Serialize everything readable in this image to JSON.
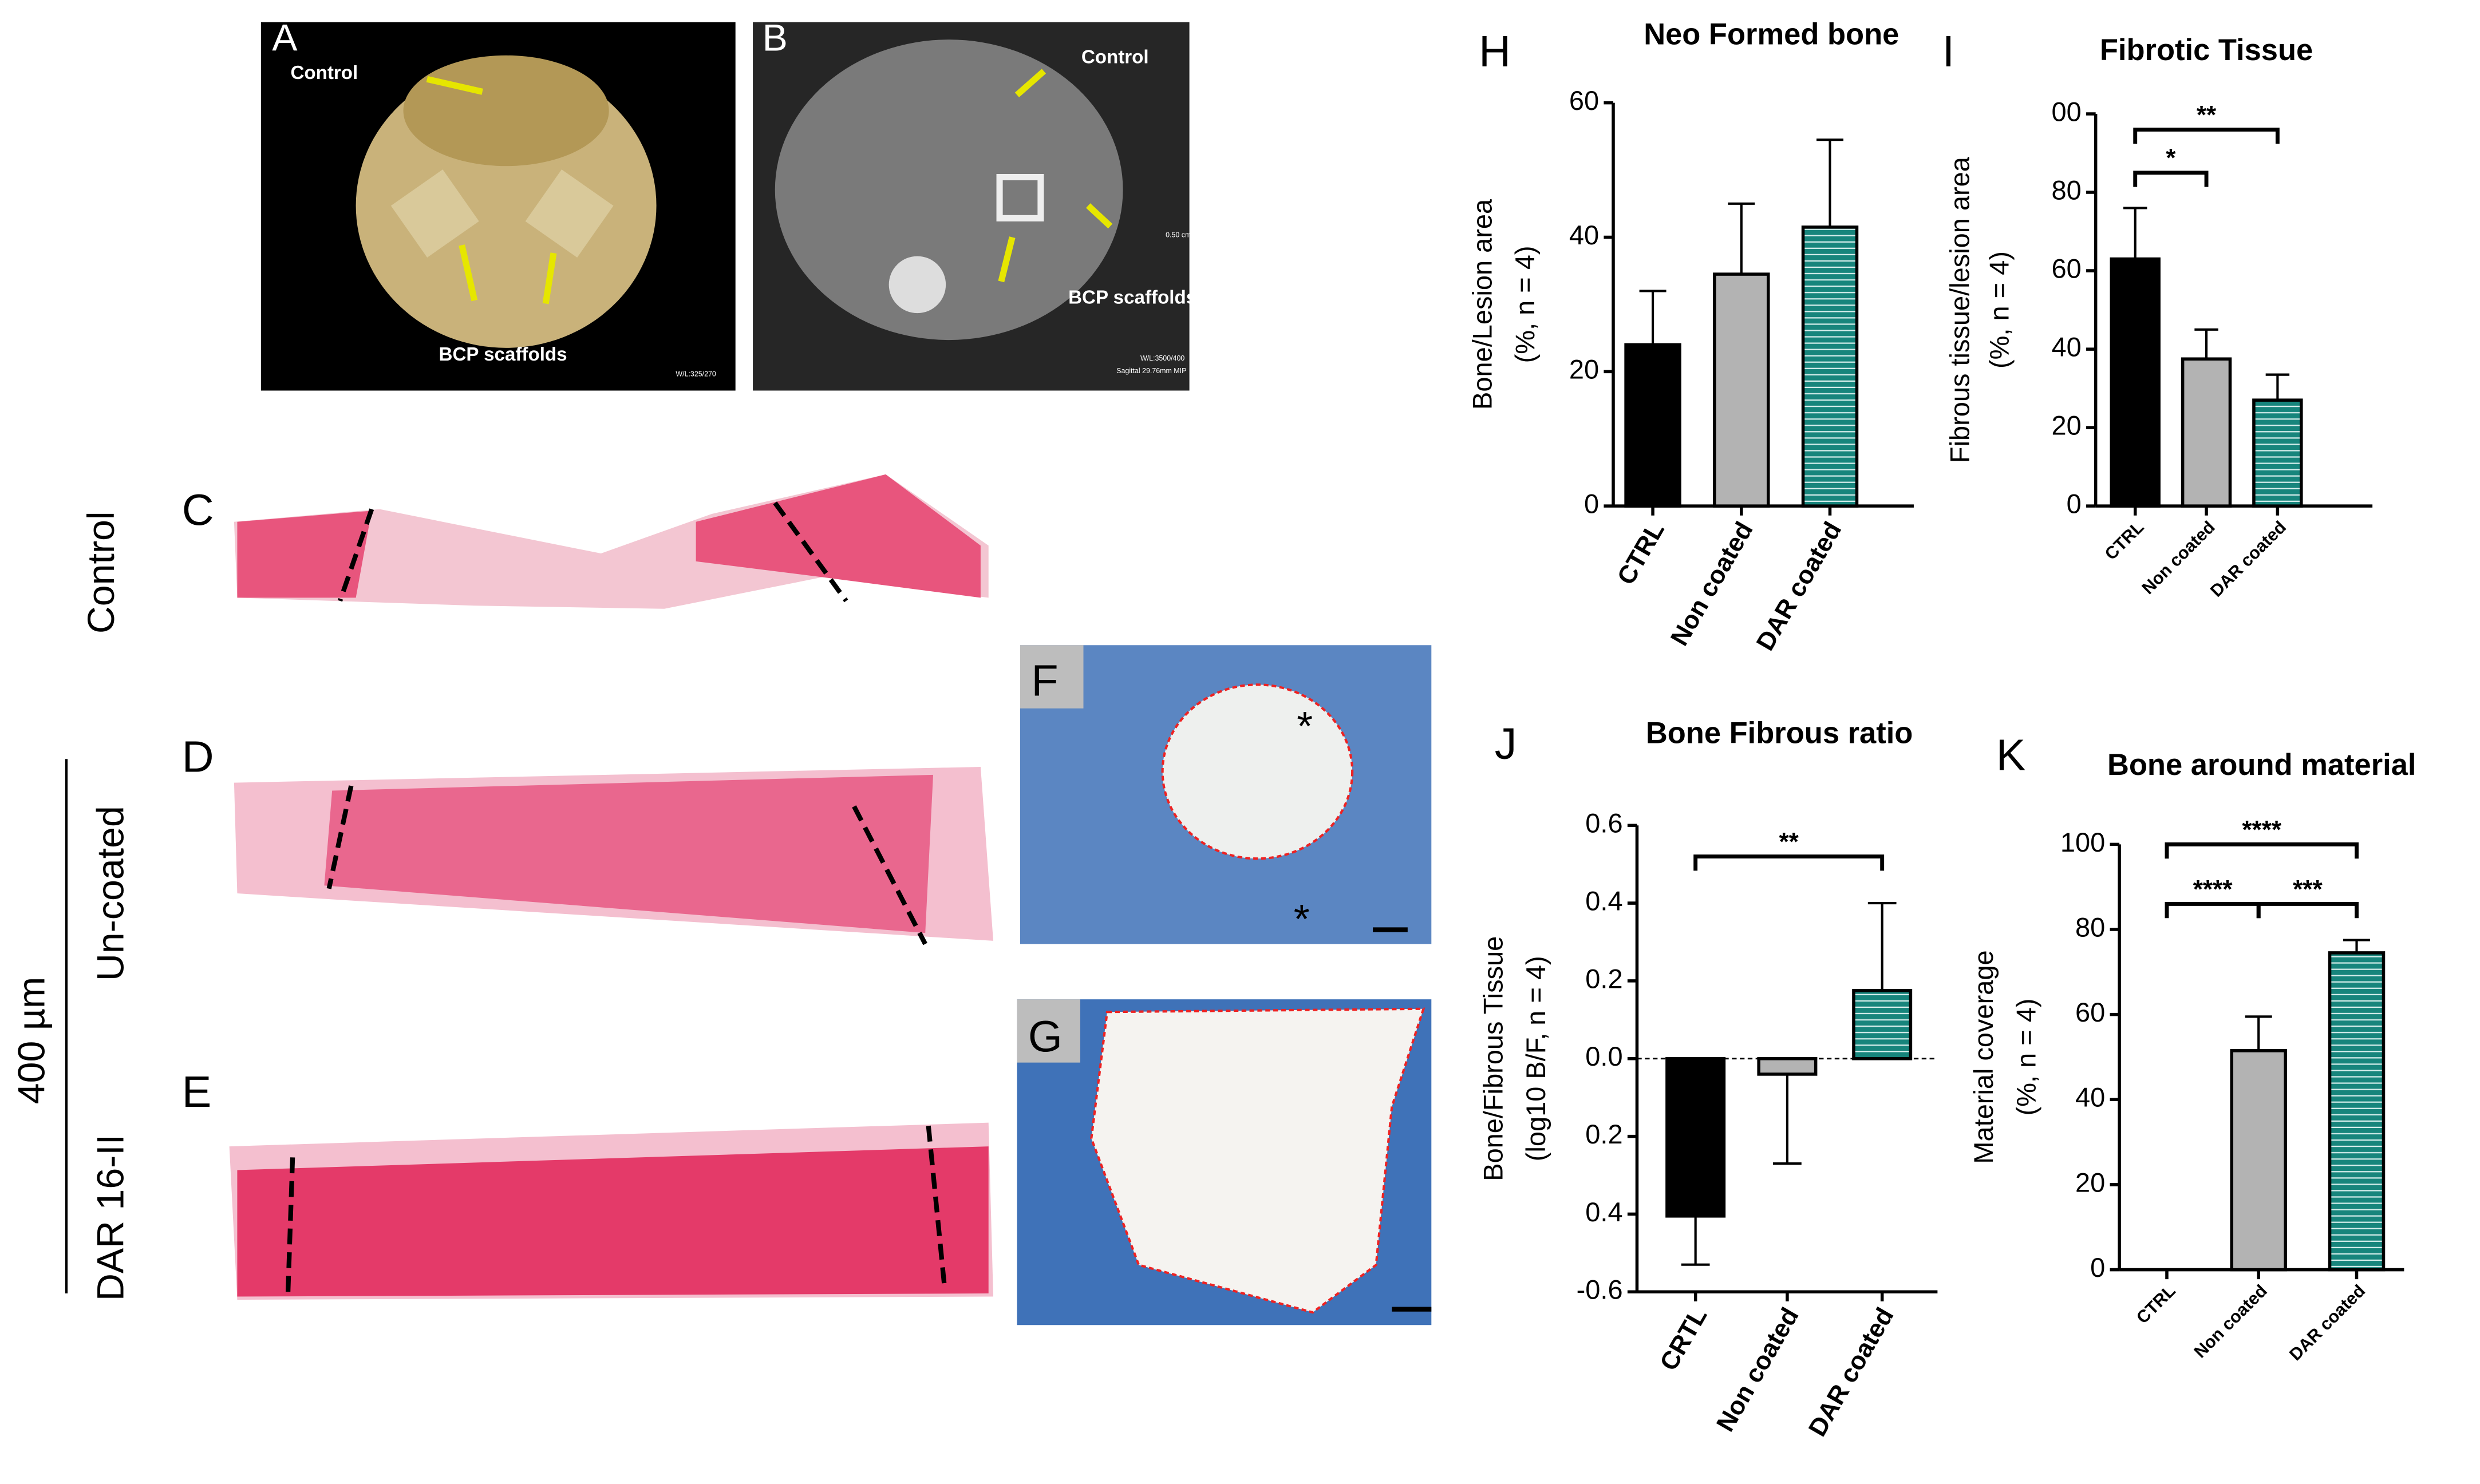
{
  "images": [
    {
      "label": "A",
      "annotations": [
        "Control",
        "BCP scaffolds",
        "W/L:325/270"
      ]
    },
    {
      "label": "B",
      "annotations": [
        "Control",
        "BCP scaffolds",
        "0.50 cm",
        "W/L:3500/400",
        "Sagittal 29.76mm MIP"
      ]
    },
    {
      "label": "C"
    },
    {
      "label": "D"
    },
    {
      "label": "E"
    },
    {
      "label": "F",
      "annotations": [
        "*",
        "*"
      ]
    },
    {
      "label": "G"
    }
  ],
  "row_labels": [
    "Control",
    "Un-coated",
    "DAR 16-II"
  ],
  "scale_bar": "400 µm",
  "chart_data": [
    {
      "type": "bar",
      "panel": "H",
      "title": "Neo Formed bone",
      "y_label": [
        "Bone/Lesion area",
        "(%, n = 4)"
      ],
      "categories": [
        "CTRL",
        "Non coated",
        "DAR coated"
      ],
      "values": [
        24,
        34.5,
        41.5
      ],
      "errors": [
        8,
        10.5,
        13
      ],
      "colors": [
        "#000000",
        "#b3b3b3",
        "#17857c"
      ],
      "hatched": [
        false,
        false,
        true
      ],
      "ylim": [
        0,
        60
      ],
      "yticks": [
        0,
        20,
        40,
        60
      ]
    },
    {
      "type": "bar",
      "panel": "I",
      "title": "Fibrotic Tissue",
      "y_label": [
        "Fibrous tissue/lesion area",
        "(%, n = 4)"
      ],
      "categories": [
        "CTRL",
        "Non coated",
        "DAR coated"
      ],
      "values": [
        63,
        37.5,
        27
      ],
      "errors": [
        13,
        7.5,
        6.5
      ],
      "colors": [
        "#000000",
        "#b3b3b3",
        "#17857c"
      ],
      "hatched": [
        false,
        false,
        true
      ],
      "ylim": [
        0,
        100
      ],
      "yticks": [
        0,
        20,
        40,
        60,
        80,
        {
          "value": 100,
          "label": "00"
        }
      ],
      "significance": [
        {
          "from": 0,
          "to": 1,
          "label": "*"
        },
        {
          "from": 0,
          "to": 2,
          "label": "**"
        }
      ]
    },
    {
      "type": "bar",
      "panel": "J",
      "title": "Bone Fibrous ratio",
      "y_label": [
        "Bone/Fibrous Tissue",
        "(log10 B/F, n = 4)"
      ],
      "categories": [
        "CRTL",
        "Non coated",
        "DAR coated"
      ],
      "values": [
        -0.405,
        -0.04,
        0.175
      ],
      "errors": [
        0.125,
        0.23,
        0.225
      ],
      "colors": [
        "#000000",
        "#b3b3b3",
        "#17857c"
      ],
      "hatched": [
        false,
        false,
        true
      ],
      "ylim": [
        -0.6,
        0.6
      ],
      "yticks": [
        -0.6,
        {
          "value": -0.4,
          "label": "0.4"
        },
        {
          "value": -0.2,
          "label": "0.2"
        },
        {
          "value": 0,
          "label": "0.0"
        },
        0.2,
        0.4,
        0.6
      ],
      "zero_line": "dashed",
      "significance": [
        {
          "from": 0,
          "to": 2,
          "label": "**"
        }
      ]
    },
    {
      "type": "bar",
      "panel": "K",
      "title": "Bone around material",
      "y_label": [
        "Material coverage",
        "(%, n = 4)"
      ],
      "categories": [
        "CTRL",
        "Non coated",
        "DAR coated"
      ],
      "values": [
        0,
        51.5,
        74.5
      ],
      "errors": [
        0,
        8,
        3
      ],
      "colors": [
        "#000000",
        "#b3b3b3",
        "#17857c"
      ],
      "hatched": [
        false,
        false,
        true
      ],
      "ylim": [
        0,
        100
      ],
      "yticks": [
        0,
        20,
        40,
        60,
        80,
        100
      ],
      "significance": [
        {
          "from": 0,
          "to": 1,
          "label": "****"
        },
        {
          "from": 1,
          "to": 2,
          "label": "***"
        },
        {
          "from": 0,
          "to": 2,
          "label": "****"
        }
      ]
    }
  ]
}
